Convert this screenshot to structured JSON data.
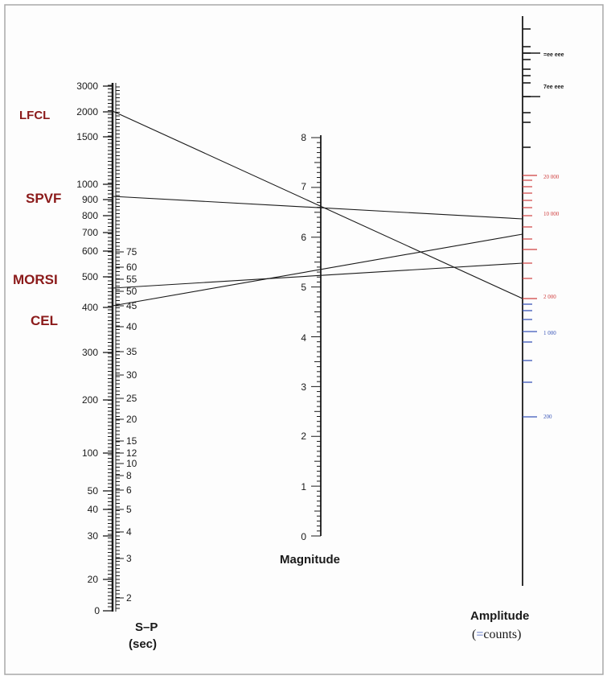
{
  "station_labels": [
    "LFCL",
    "SPVF",
    "MORSI",
    "CEL"
  ],
  "sp_axis": {
    "distance_ticks": [
      "3000",
      "2000",
      "1500",
      "1000",
      "900",
      "800",
      "700",
      "600",
      "500",
      "400",
      "300",
      "200",
      "100",
      "50",
      "40",
      "30",
      "20",
      "0"
    ],
    "time_ticks": [
      "75",
      "60",
      "55",
      "50",
      "45",
      "40",
      "35",
      "30",
      "25",
      "20",
      "15",
      "12",
      "10",
      "8",
      "6",
      "5",
      "4",
      "3",
      "2"
    ],
    "title_line1": "S–P",
    "title_line2": "(sec)"
  },
  "magnitude_axis": {
    "ticks": [
      "8",
      "7",
      "6",
      "5",
      "4",
      "3",
      "2",
      "1",
      "0"
    ],
    "title": "Magnitude"
  },
  "amplitude_axis": {
    "black_labels": [
      "=ee eee",
      "7ee eee"
    ],
    "red_labels": [
      "20 000",
      "10 000",
      "2 000"
    ],
    "blue_labels": [
      "1 000",
      "200"
    ],
    "title": "Amplitude",
    "units_open": "(",
    "units_mark": "=",
    "units_word": "counts)"
  },
  "colors": {
    "station_label": "#8b1a1a",
    "red_scale": "#d04040",
    "blue_scale": "#3a56b8",
    "ink": "#1a1a1a"
  }
}
